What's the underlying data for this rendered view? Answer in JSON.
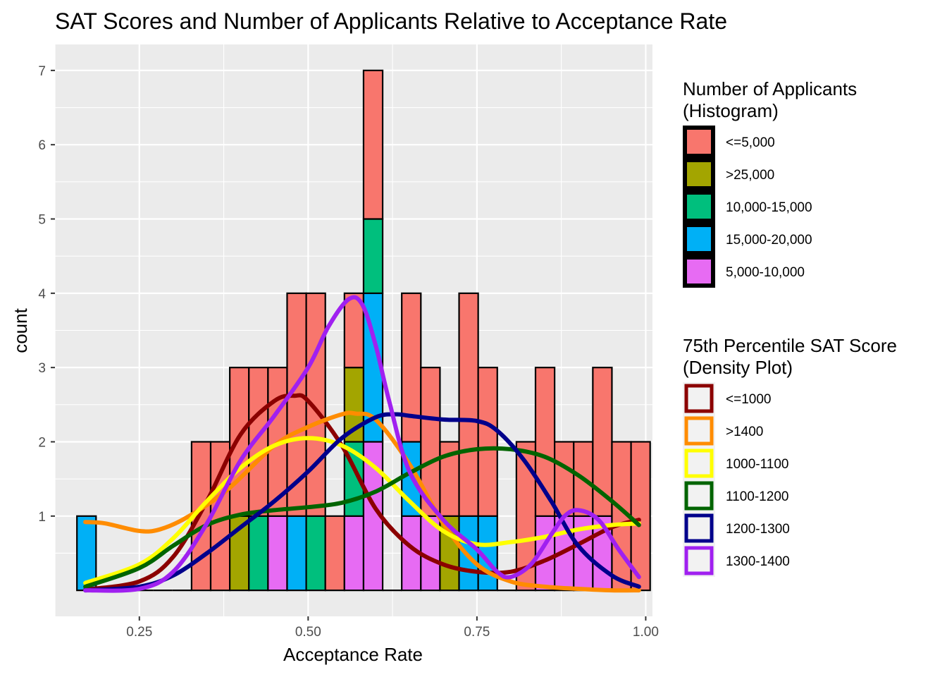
{
  "chart_data": {
    "type": "bar",
    "subtype": "stacked histogram with density overlay",
    "title": "SAT Scores and Number of Applicants Relative to Acceptance Rate",
    "xlabel": "Acceptance Rate",
    "ylabel": "count",
    "xlim": [
      0.125,
      1.01
    ],
    "ylim": [
      -0.35,
      7.35
    ],
    "x_ticks": [
      {
        "value": 0.25,
        "label": "0.25"
      },
      {
        "value": 0.5,
        "label": "0.50"
      },
      {
        "value": 0.75,
        "label": "0.75"
      },
      {
        "value": 1.0,
        "label": "1.00"
      }
    ],
    "y_ticks": [
      {
        "value": 1,
        "label": "1"
      },
      {
        "value": 2,
        "label": "2"
      },
      {
        "value": 3,
        "label": "3"
      },
      {
        "value": 4,
        "label": "4"
      },
      {
        "value": 5,
        "label": "5"
      },
      {
        "value": 6,
        "label": "6"
      },
      {
        "value": 7,
        "label": "7"
      }
    ],
    "grid": true,
    "background": "#EBEBEB",
    "bin_width": 0.0283,
    "bin_centers": [
      0.1717,
      0.2,
      0.2283,
      0.2566,
      0.2849,
      0.3132,
      0.3415,
      0.3698,
      0.3981,
      0.4264,
      0.4547,
      0.483,
      0.5113,
      0.5396,
      0.5679,
      0.5962,
      0.6245,
      0.6528,
      0.6811,
      0.7094,
      0.7377,
      0.766,
      0.7943,
      0.8226,
      0.8509,
      0.8792,
      0.9075,
      0.9358,
      0.9641,
      0.9924
    ],
    "histogram_legend": {
      "title_lines": [
        "Number of Applicants",
        "(Histogram)"
      ],
      "items": [
        {
          "label": "<=5,000",
          "color": "#F8766D"
        },
        {
          "label": ">25,000",
          "color": "#A3A500"
        },
        {
          "label": "10,000-15,000",
          "color": "#00BF7D"
        },
        {
          "label": "15,000-20,000",
          "color": "#00B0F6"
        },
        {
          "label": "5,000-10,000",
          "color": "#E76BF3"
        }
      ]
    },
    "histogram_series": [
      {
        "name": "<=5,000",
        "color": "#F8766D",
        "values": [
          0,
          0,
          0,
          0,
          0,
          0,
          2,
          2,
          2,
          2,
          2,
          3,
          3,
          1,
          1,
          2,
          0,
          2,
          2,
          1,
          3,
          2,
          0,
          2,
          2,
          1,
          1,
          2,
          2,
          2
        ]
      },
      {
        "name": ">25,000",
        "color": "#A3A500",
        "values": [
          0,
          0,
          0,
          0,
          0,
          0,
          0,
          0,
          1,
          0,
          0,
          0,
          0,
          0,
          1,
          0,
          0,
          0,
          0,
          1,
          0,
          0,
          0,
          0,
          0,
          0,
          0,
          0,
          0,
          0
        ]
      },
      {
        "name": "10,000-15,000",
        "color": "#00BF7D",
        "values": [
          0,
          0,
          0,
          0,
          0,
          0,
          0,
          0,
          0,
          1,
          0,
          0,
          1,
          0,
          1,
          1,
          0,
          0,
          0,
          0,
          0,
          0,
          0,
          0,
          0,
          0,
          0,
          0,
          0,
          0
        ]
      },
      {
        "name": "15,000-20,000",
        "color": "#00B0F6",
        "values": [
          1,
          0,
          0,
          0,
          0,
          0,
          0,
          0,
          0,
          0,
          0,
          1,
          0,
          0,
          0,
          2,
          0,
          1,
          0,
          0,
          1,
          1,
          0,
          0,
          0,
          0,
          0,
          0,
          0,
          0
        ]
      },
      {
        "name": "5,000-10,000",
        "color": "#E76BF3",
        "values": [
          0,
          0,
          0,
          0,
          0,
          0,
          0,
          0,
          0,
          0,
          1,
          0,
          0,
          0,
          1,
          2,
          0,
          1,
          1,
          0,
          0,
          0,
          0,
          0,
          1,
          1,
          1,
          1,
          0,
          0
        ]
      }
    ],
    "density_legend": {
      "title_lines": [
        "75th Percentile SAT Score",
        "(Density Plot)"
      ],
      "items": [
        {
          "label": "<=1000",
          "color": "#8B0000"
        },
        {
          "label": ">1400",
          "color": "#FF8C00"
        },
        {
          "label": "1000-1100",
          "color": "#FFFF00"
        },
        {
          "label": "1100-1200",
          "color": "#006400"
        },
        {
          "label": "1200-1300",
          "color": "#00008B"
        },
        {
          "label": "1300-1400",
          "color": "#A020F0"
        }
      ]
    },
    "density_series": [
      {
        "name": "<=1000",
        "color": "#8B0000",
        "x": [
          0.17,
          0.25,
          0.3,
          0.35,
          0.4,
          0.45,
          0.48,
          0.5,
          0.55,
          0.6,
          0.65,
          0.7,
          0.75,
          0.8,
          0.85,
          0.9,
          0.95,
          0.99
        ],
        "y": [
          0.01,
          0.12,
          0.45,
          1.2,
          2.1,
          2.55,
          2.62,
          2.55,
          1.95,
          1.1,
          0.6,
          0.35,
          0.25,
          0.25,
          0.4,
          0.62,
          0.85,
          0.95
        ]
      },
      {
        "name": ">1400",
        "color": "#FF8C00",
        "x": [
          0.17,
          0.2,
          0.25,
          0.28,
          0.32,
          0.38,
          0.45,
          0.5,
          0.55,
          0.57,
          0.6,
          0.65,
          0.7,
          0.75,
          0.8,
          0.85,
          0.9,
          0.95,
          0.99
        ],
        "y": [
          0.92,
          0.9,
          0.8,
          0.82,
          0.98,
          1.35,
          1.95,
          2.2,
          2.37,
          2.38,
          2.3,
          1.7,
          0.9,
          0.35,
          0.12,
          0.05,
          0.02,
          0.0,
          0.0
        ]
      },
      {
        "name": "1000-1100",
        "color": "#FFFF00",
        "x": [
          0.17,
          0.25,
          0.3,
          0.35,
          0.4,
          0.45,
          0.5,
          0.55,
          0.6,
          0.65,
          0.7,
          0.75,
          0.8,
          0.85,
          0.9,
          0.95,
          0.99
        ],
        "y": [
          0.1,
          0.35,
          0.7,
          1.2,
          1.65,
          1.95,
          2.05,
          1.95,
          1.65,
          1.2,
          0.8,
          0.62,
          0.65,
          0.72,
          0.82,
          0.88,
          0.9
        ]
      },
      {
        "name": "1100-1200",
        "color": "#006400",
        "x": [
          0.17,
          0.25,
          0.3,
          0.35,
          0.4,
          0.45,
          0.5,
          0.55,
          0.6,
          0.65,
          0.7,
          0.75,
          0.8,
          0.85,
          0.9,
          0.95,
          0.99
        ],
        "y": [
          0.05,
          0.3,
          0.6,
          0.88,
          1.02,
          1.08,
          1.12,
          1.18,
          1.33,
          1.58,
          1.8,
          1.9,
          1.9,
          1.8,
          1.55,
          1.2,
          0.88
        ]
      },
      {
        "name": "1200-1300",
        "color": "#00008B",
        "x": [
          0.17,
          0.25,
          0.3,
          0.35,
          0.4,
          0.45,
          0.5,
          0.55,
          0.6,
          0.63,
          0.65,
          0.7,
          0.75,
          0.78,
          0.82,
          0.86,
          0.9,
          0.95,
          0.99
        ],
        "y": [
          0.0,
          0.05,
          0.2,
          0.5,
          0.85,
          1.2,
          1.6,
          2.05,
          2.33,
          2.37,
          2.35,
          2.3,
          2.28,
          2.15,
          1.75,
          1.2,
          0.6,
          0.2,
          0.05
        ]
      },
      {
        "name": "1300-1400",
        "color": "#A020F0",
        "x": [
          0.17,
          0.25,
          0.3,
          0.35,
          0.4,
          0.45,
          0.5,
          0.53,
          0.56,
          0.58,
          0.6,
          0.62,
          0.65,
          0.7,
          0.75,
          0.78,
          0.8,
          0.83,
          0.86,
          0.88,
          0.9,
          0.93,
          0.96,
          0.99
        ],
        "y": [
          0.0,
          0.02,
          0.25,
          0.9,
          1.75,
          2.35,
          3.0,
          3.55,
          3.92,
          3.85,
          3.3,
          2.55,
          1.6,
          0.95,
          0.55,
          0.25,
          0.18,
          0.35,
          0.75,
          1.0,
          1.08,
          0.95,
          0.55,
          0.18
        ]
      }
    ]
  }
}
